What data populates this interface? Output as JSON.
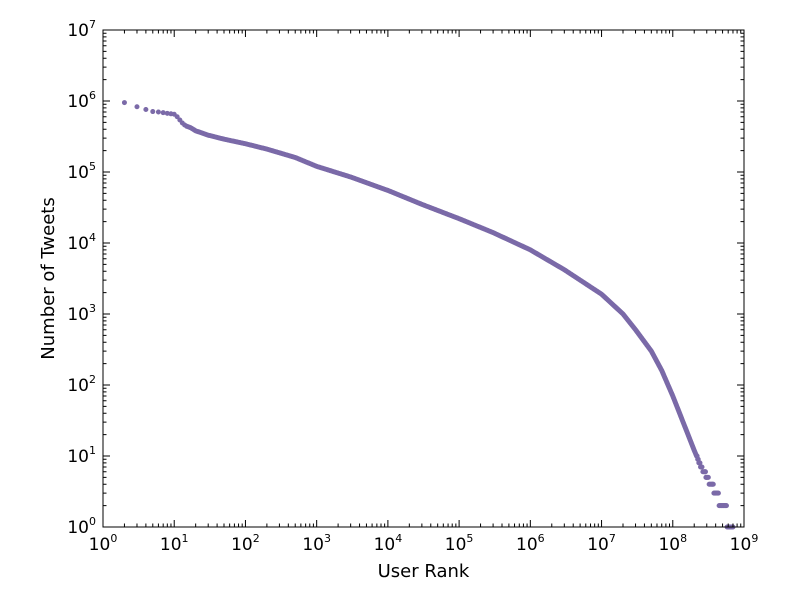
{
  "chart_data": {
    "type": "scatter",
    "title": "",
    "xlabel": "User Rank",
    "ylabel": "Number of Tweets",
    "x_scale": "log",
    "y_scale": "log",
    "xlim": [
      1,
      1000000000
    ],
    "ylim": [
      1,
      10000000
    ],
    "grid": false,
    "legend": "none",
    "x_tick_labels": [
      {
        "base": "10",
        "exp": "0"
      },
      {
        "base": "10",
        "exp": "1"
      },
      {
        "base": "10",
        "exp": "2"
      },
      {
        "base": "10",
        "exp": "3"
      },
      {
        "base": "10",
        "exp": "4"
      },
      {
        "base": "10",
        "exp": "5"
      },
      {
        "base": "10",
        "exp": "6"
      },
      {
        "base": "10",
        "exp": "7"
      },
      {
        "base": "10",
        "exp": "8"
      },
      {
        "base": "10",
        "exp": "9"
      }
    ],
    "y_tick_labels": [
      {
        "base": "10",
        "exp": "0"
      },
      {
        "base": "10",
        "exp": "1"
      },
      {
        "base": "10",
        "exp": "2"
      },
      {
        "base": "10",
        "exp": "3"
      },
      {
        "base": "10",
        "exp": "4"
      },
      {
        "base": "10",
        "exp": "5"
      },
      {
        "base": "10",
        "exp": "6"
      },
      {
        "base": "10",
        "exp": "7"
      }
    ],
    "marker_color": "#7b6aa8",
    "series": [
      {
        "points": [
          [
            2,
            950000
          ],
          [
            3,
            830000
          ],
          [
            4,
            760000
          ],
          [
            5,
            710000
          ],
          [
            6,
            700000
          ],
          [
            7,
            685000
          ],
          [
            8,
            670000
          ],
          [
            9,
            660000
          ],
          [
            10,
            650000
          ],
          [
            11,
            600000
          ],
          [
            12,
            540000
          ],
          [
            13,
            490000
          ],
          [
            14,
            460000
          ],
          [
            15,
            440000
          ],
          [
            17,
            420000
          ],
          [
            20,
            380000
          ],
          [
            30,
            330000
          ],
          [
            50,
            290000
          ],
          [
            100,
            250000
          ],
          [
            200,
            210000
          ],
          [
            500,
            160000
          ],
          [
            1000,
            120000
          ],
          [
            3000,
            85000
          ],
          [
            10000,
            55000
          ],
          [
            30000,
            35000
          ],
          [
            100000,
            22000
          ],
          [
            300000,
            14000
          ],
          [
            1000000,
            8000
          ],
          [
            3000000,
            4200
          ],
          [
            10000000,
            1900
          ],
          [
            20000000,
            1000
          ],
          [
            30000000,
            600
          ],
          [
            50000000,
            300
          ],
          [
            70000000,
            160
          ],
          [
            100000000,
            70
          ],
          [
            150000000,
            25
          ],
          [
            200000000,
            12
          ],
          [
            250000000,
            7
          ],
          [
            280000000,
            6
          ],
          [
            300000000,
            5
          ],
          [
            350000000,
            4
          ],
          [
            400000000,
            3
          ],
          [
            500000000,
            2
          ],
          [
            700000000,
            1
          ]
        ]
      }
    ]
  }
}
